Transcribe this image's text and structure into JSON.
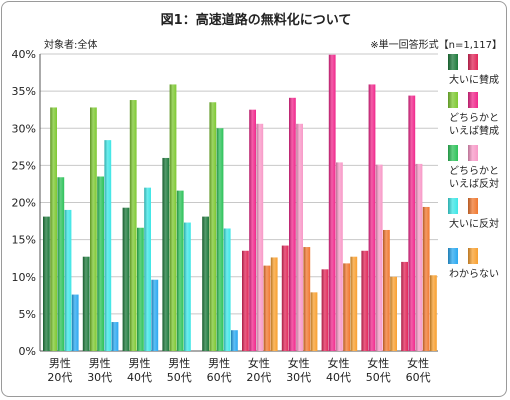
{
  "chart_data": {
    "type": "bar",
    "title": "図1：高速道路の無料化について",
    "subtitle_left": "対象者:全体",
    "subtitle_right": "※単一回答形式【n=1,117】",
    "ylim": [
      0,
      40
    ],
    "yticks": [
      "0%",
      "5%",
      "10%",
      "15%",
      "20%",
      "25%",
      "30%",
      "35%",
      "40%"
    ],
    "grid": true,
    "legend_position": "right",
    "categories": [
      [
        "男性",
        "20代"
      ],
      [
        "男性",
        "30代"
      ],
      [
        "男性",
        "40代"
      ],
      [
        "男性",
        "50代"
      ],
      [
        "男性",
        "60代"
      ],
      [
        "女性",
        "20代"
      ],
      [
        "女性",
        "30代"
      ],
      [
        "女性",
        "40代"
      ],
      [
        "女性",
        "50代"
      ],
      [
        "女性",
        "60代"
      ]
    ],
    "series": [
      {
        "name": "大いに賛成",
        "lines": [
          "大いに賛成"
        ],
        "values": [
          18.1,
          12.7,
          19.3,
          26.0,
          18.1,
          13.5,
          14.2,
          11.0,
          13.5,
          12.0
        ]
      },
      {
        "name": "どちらかといえば賛成",
        "lines": [
          "どちらかと",
          "いえば賛成"
        ],
        "values": [
          32.8,
          32.8,
          33.8,
          35.9,
          33.5,
          32.5,
          34.1,
          39.9,
          35.9,
          34.4
        ]
      },
      {
        "name": "どちらかといえば反対",
        "lines": [
          "どちらかと",
          "いえば反対"
        ],
        "values": [
          23.4,
          23.5,
          16.6,
          21.6,
          30.0,
          30.6,
          30.6,
          25.4,
          25.1,
          25.2
        ]
      },
      {
        "name": "大いに反対",
        "lines": [
          "大いに反対"
        ],
        "values": [
          19.0,
          28.4,
          22.0,
          17.3,
          16.5,
          11.5,
          14.0,
          11.8,
          16.3,
          19.4
        ]
      },
      {
        "name": "わからない",
        "lines": [
          "わからない"
        ],
        "values": [
          7.6,
          3.9,
          9.6,
          0,
          2.8,
          12.6,
          7.9,
          12.7,
          10.0,
          10.2
        ]
      }
    ],
    "colors": {
      "male": [
        "#1e7a3c",
        "#7ec832",
        "#2ec25a",
        "#3ee6e6",
        "#2aa8f0"
      ],
      "female": [
        "#e0285a",
        "#f0288c",
        "#f89ac8",
        "#f07830",
        "#f8a030"
      ]
    }
  }
}
